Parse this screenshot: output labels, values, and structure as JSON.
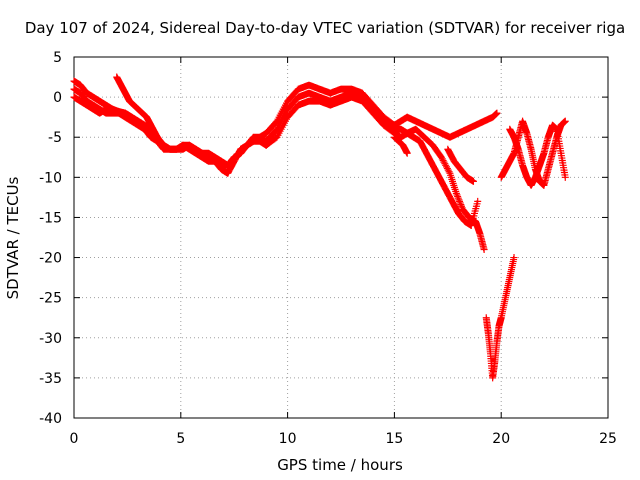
{
  "chart_data": {
    "type": "scatter",
    "title": "Day 107 of 2024, Sidereal Day-to-day VTEC variation (SDTVAR) for receiver riga",
    "xlabel": "GPS time / hours",
    "ylabel": "SDTVAR / TECUs",
    "xlim": [
      0,
      25
    ],
    "ylim": [
      -40,
      5
    ],
    "xticks": [
      0,
      5,
      10,
      15,
      20,
      25
    ],
    "yticks": [
      5,
      0,
      -5,
      -10,
      -15,
      -20,
      -25,
      -30,
      -35,
      -40
    ],
    "grid": true,
    "legend": "none",
    "marker": "plus",
    "color": "#ff0000",
    "series": [
      {
        "x": [
          0.0,
          0.3,
          0.6,
          0.9,
          1.2,
          1.5,
          1.8,
          2.1,
          2.4,
          2.7,
          3.0,
          3.3,
          3.6,
          3.9,
          4.2,
          4.5,
          4.8,
          5.1,
          5.4,
          5.7,
          6.0,
          6.3,
          6.6,
          6.9,
          7.2,
          7.5,
          7.8,
          8.1,
          8.4,
          8.7,
          9.0
        ],
        "y": [
          2.0,
          1.5,
          0.5,
          0.0,
          -0.5,
          -1.0,
          -1.5,
          -1.8,
          -2.0,
          -2.5,
          -3.0,
          -3.5,
          -4.0,
          -5.0,
          -6.0,
          -6.5,
          -6.5,
          -6.5,
          -6.0,
          -6.5,
          -7.0,
          -7.5,
          -8.0,
          -8.5,
          -8.5,
          -7.5,
          -7.0,
          -6.0,
          -5.5,
          -5.0,
          -4.5
        ]
      },
      {
        "x": [
          0.0,
          0.3,
          0.6,
          0.9,
          1.2,
          1.5,
          1.8,
          2.1,
          2.4,
          2.7,
          3.0,
          3.3,
          3.6,
          3.9,
          4.2,
          4.5,
          4.8,
          5.1,
          5.4,
          5.7,
          6.0,
          6.3,
          6.6,
          6.9,
          7.2,
          7.5,
          7.8,
          8.1,
          8.4,
          8.7,
          9.0
        ],
        "y": [
          1.0,
          0.5,
          -0.5,
          -1.0,
          -1.5,
          -2.0,
          -2.0,
          -2.0,
          -2.5,
          -3.0,
          -3.5,
          -4.0,
          -5.0,
          -5.5,
          -6.5,
          -6.5,
          -6.5,
          -6.0,
          -6.5,
          -7.0,
          -7.5,
          -8.0,
          -8.0,
          -9.0,
          -9.5,
          -8.0,
          -6.5,
          -6.0,
          -5.0,
          -5.0,
          -5.5
        ]
      },
      {
        "x": [
          0.0,
          0.3,
          0.6,
          0.9,
          1.2,
          1.5,
          1.8,
          2.1,
          2.4,
          2.7,
          3.0,
          3.3,
          3.6,
          3.9,
          4.2,
          4.5,
          4.8,
          5.1,
          5.4,
          5.7,
          6.0,
          6.3,
          6.6,
          6.9,
          7.2,
          7.5,
          7.8,
          8.1,
          8.4,
          8.7,
          9.0
        ],
        "y": [
          0.0,
          -0.5,
          -1.0,
          -1.5,
          -2.0,
          -1.5,
          -1.5,
          -2.0,
          -2.0,
          -2.5,
          -3.0,
          -3.5,
          -4.5,
          -5.5,
          -6.0,
          -6.5,
          -6.5,
          -6.0,
          -6.0,
          -6.5,
          -7.0,
          -7.0,
          -7.5,
          -8.0,
          -8.5,
          -7.5,
          -7.0,
          -6.0,
          -5.5,
          -5.5,
          -6.0
        ]
      },
      {
        "x": [
          2.0,
          2.2,
          2.4,
          2.6,
          2.8,
          3.0,
          3.2,
          3.4,
          3.6,
          3.8,
          4.0
        ],
        "y": [
          2.5,
          1.5,
          0.5,
          -0.5,
          -1.0,
          -1.5,
          -2.0,
          -2.5,
          -3.5,
          -4.5,
          -5.5
        ]
      },
      {
        "x": [
          9.0,
          9.5,
          10.0,
          10.5,
          11.0,
          11.5,
          12.0,
          12.5,
          13.0,
          13.5,
          14.0,
          14.5,
          15.0
        ],
        "y": [
          -4.5,
          -3.0,
          -0.5,
          1.0,
          1.5,
          1.0,
          0.5,
          1.0,
          1.0,
          0.5,
          -1.0,
          -2.5,
          -3.5
        ]
      },
      {
        "x": [
          9.0,
          9.5,
          10.0,
          10.5,
          11.0,
          11.5,
          12.0,
          12.5,
          13.0,
          13.5,
          14.0,
          14.5,
          15.0
        ],
        "y": [
          -5.5,
          -4.0,
          -1.5,
          0.0,
          0.5,
          0.0,
          -0.5,
          0.0,
          0.5,
          0.0,
          -1.5,
          -3.0,
          -4.0
        ]
      },
      {
        "x": [
          9.0,
          9.5,
          10.0,
          10.5,
          11.0,
          11.5,
          12.0,
          12.5,
          13.0,
          13.5,
          14.0,
          14.5,
          15.0
        ],
        "y": [
          -6.0,
          -5.0,
          -2.5,
          -1.0,
          -0.5,
          -0.5,
          -1.0,
          -0.5,
          0.0,
          -0.5,
          -2.0,
          -3.5,
          -4.5
        ]
      },
      {
        "x": [
          15.0,
          15.3,
          15.6,
          16.0,
          16.4,
          16.8,
          17.2,
          17.6,
          18.0,
          18.4,
          18.8,
          19.2,
          19.6,
          19.8
        ],
        "y": [
          -3.5,
          -3.0,
          -2.5,
          -3.0,
          -3.5,
          -4.0,
          -4.5,
          -5.0,
          -4.5,
          -4.0,
          -3.5,
          -3.0,
          -2.5,
          -2.0
        ]
      },
      {
        "x": [
          15.0,
          15.3,
          15.6,
          16.0,
          16.4,
          16.8,
          17.2,
          17.6,
          17.9,
          18.2,
          18.5,
          18.8,
          19.0,
          19.2
        ],
        "y": [
          -4.0,
          -4.0,
          -4.5,
          -4.0,
          -5.0,
          -6.0,
          -7.5,
          -9.5,
          -12.0,
          -14.0,
          -15.0,
          -15.5,
          -17.0,
          -19.0
        ]
      },
      {
        "x": [
          15.0,
          15.3,
          15.6,
          15.9,
          16.2,
          16.5,
          16.8,
          17.1,
          17.4,
          17.7,
          18.0,
          18.3,
          18.6,
          18.9
        ],
        "y": [
          -4.5,
          -5.0,
          -4.5,
          -5.0,
          -5.5,
          -7.0,
          -8.5,
          -10.0,
          -11.5,
          -13.0,
          -14.5,
          -15.5,
          -16.0,
          -13.0
        ]
      },
      {
        "x": [
          15.0,
          15.2,
          15.4,
          15.6
        ],
        "y": [
          -5.0,
          -5.5,
          -6.0,
          -7.0
        ]
      },
      {
        "x": [
          17.5,
          17.8,
          18.1,
          18.4,
          18.7
        ],
        "y": [
          -6.5,
          -8.0,
          -9.0,
          -10.0,
          -10.5
        ]
      },
      {
        "x": [
          19.3,
          19.4,
          19.5,
          19.6,
          19.7,
          19.8,
          19.9,
          20.0,
          20.2,
          20.4,
          20.6
        ],
        "y": [
          -27.5,
          -29.5,
          -32.0,
          -35.0,
          -33.0,
          -30.5,
          -28.5,
          -27.5,
          -25.0,
          -22.5,
          -20.0
        ]
      },
      {
        "x": [
          20.0,
          20.2,
          20.4,
          20.6,
          20.8,
          21.0,
          21.2,
          21.4,
          21.6,
          21.8,
          22.0,
          22.2,
          22.4,
          22.6,
          22.8,
          23.0
        ],
        "y": [
          -10.0,
          -9.0,
          -8.0,
          -7.0,
          -5.0,
          -3.0,
          -4.5,
          -6.5,
          -9.0,
          -10.5,
          -11.0,
          -9.0,
          -7.0,
          -5.0,
          -3.5,
          -3.0
        ]
      },
      {
        "x": [
          20.4,
          20.6,
          20.8,
          21.0,
          21.2,
          21.4,
          21.6,
          21.8,
          22.0,
          22.2,
          22.4,
          22.6,
          22.8,
          23.0
        ],
        "y": [
          -4.0,
          -5.0,
          -6.5,
          -8.5,
          -10.0,
          -11.0,
          -10.0,
          -8.5,
          -7.0,
          -5.0,
          -3.5,
          -4.0,
          -7.0,
          -10.0
        ]
      }
    ]
  }
}
